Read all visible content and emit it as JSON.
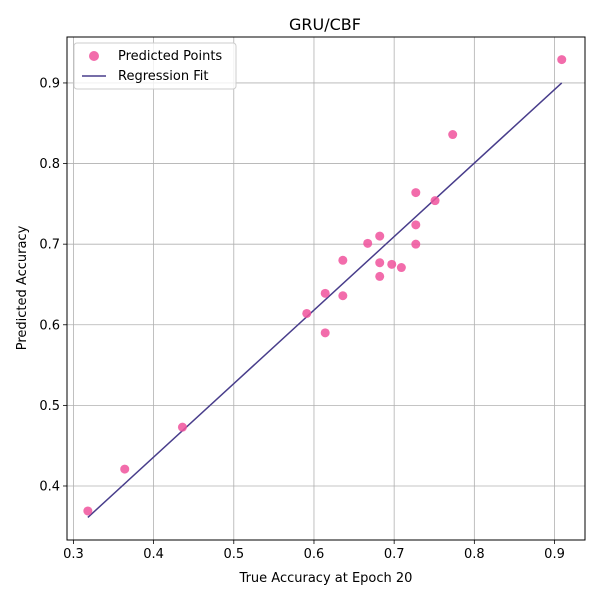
{
  "chart_data": {
    "type": "scatter",
    "title": "GRU/CBF",
    "xlabel": "True Accuracy at Epoch 20",
    "ylabel": "Predicted Accuracy",
    "xlim": [
      0.292,
      0.938
    ],
    "ylim": [
      0.333,
      0.957
    ],
    "xticks": [
      0.3,
      0.4,
      0.5,
      0.6,
      0.7,
      0.8,
      0.9
    ],
    "xtick_labels": [
      "0.3",
      "0.4",
      "0.5",
      "0.6",
      "0.7",
      "0.8",
      "0.9"
    ],
    "yticks": [
      0.4,
      0.5,
      0.6,
      0.7,
      0.8,
      0.9
    ],
    "ytick_labels": [
      "0.4",
      "0.5",
      "0.6",
      "0.7",
      "0.8",
      "0.9"
    ],
    "grid": true,
    "legend_position": "top-left",
    "series": [
      {
        "name": "Predicted Points",
        "kind": "scatter",
        "color": "#f0529c",
        "points": [
          [
            0.318,
            0.369
          ],
          [
            0.364,
            0.421
          ],
          [
            0.436,
            0.473
          ],
          [
            0.591,
            0.614
          ],
          [
            0.614,
            0.639
          ],
          [
            0.614,
            0.59
          ],
          [
            0.636,
            0.68
          ],
          [
            0.636,
            0.636
          ],
          [
            0.667,
            0.701
          ],
          [
            0.682,
            0.71
          ],
          [
            0.682,
            0.677
          ],
          [
            0.682,
            0.66
          ],
          [
            0.697,
            0.675
          ],
          [
            0.709,
            0.671
          ],
          [
            0.727,
            0.764
          ],
          [
            0.727,
            0.724
          ],
          [
            0.727,
            0.7
          ],
          [
            0.751,
            0.754
          ],
          [
            0.773,
            0.836
          ],
          [
            0.909,
            0.929
          ]
        ]
      },
      {
        "name": "Regression Fit",
        "kind": "line",
        "color": "#483d8b",
        "points": [
          [
            0.318,
            0.361
          ],
          [
            0.909,
            0.9
          ]
        ]
      }
    ]
  }
}
